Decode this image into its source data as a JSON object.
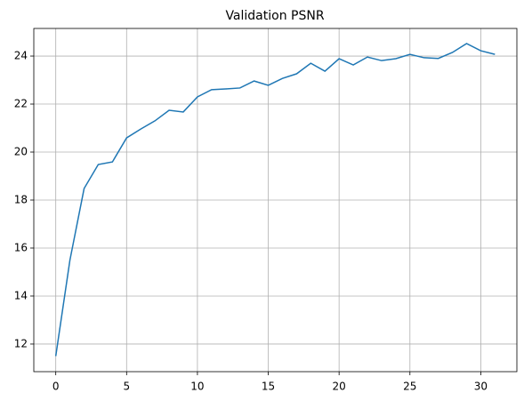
{
  "chart_data": {
    "type": "line",
    "title": "Validation PSNR",
    "x": [
      0,
      1,
      2,
      3,
      4,
      5,
      6,
      7,
      8,
      9,
      10,
      11,
      12,
      13,
      14,
      15,
      16,
      17,
      18,
      19,
      20,
      21,
      22,
      23,
      24,
      25,
      26,
      27,
      28,
      29,
      30,
      31
    ],
    "series": [
      {
        "color": "#1f77b4",
        "values": [
          11.5,
          15.5,
          18.48,
          19.48,
          19.59,
          20.59,
          20.96,
          21.3,
          21.74,
          21.67,
          22.3,
          22.6,
          22.63,
          22.67,
          22.96,
          22.78,
          23.07,
          23.26,
          23.7,
          23.37,
          23.89,
          23.63,
          23.96,
          23.81,
          23.89,
          24.07,
          23.93,
          23.9,
          24.15,
          24.52,
          24.22,
          24.07
        ]
      }
    ],
    "xlim": [
      -1.55,
      32.55
    ],
    "xticks": [
      0,
      5,
      10,
      15,
      20,
      25,
      30
    ],
    "ylim": [
      10.85,
      25.15
    ],
    "yticks": [
      12,
      14,
      16,
      18,
      20,
      22,
      24
    ],
    "grid": true
  }
}
